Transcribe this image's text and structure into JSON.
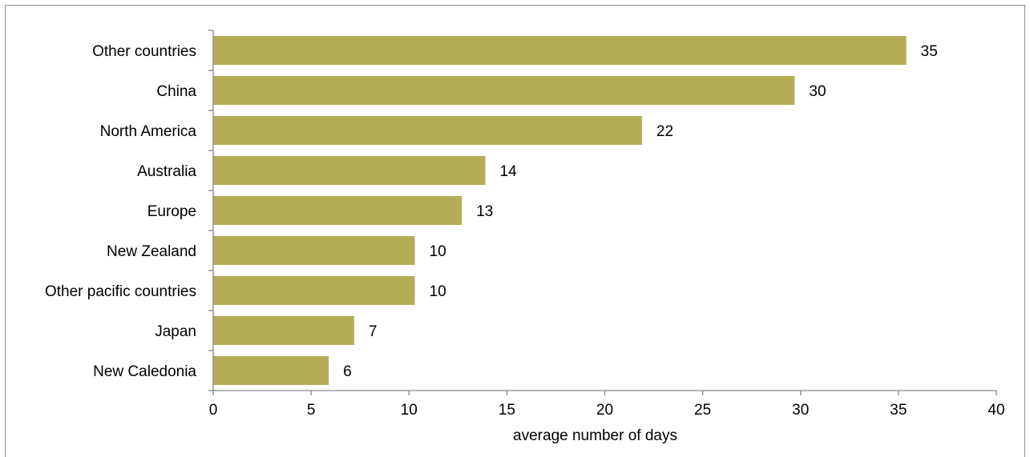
{
  "chart_data": {
    "type": "bar",
    "orientation": "horizontal",
    "title": "",
    "xlabel": "average number of days",
    "ylabel": "",
    "categories": [
      "Other countries",
      "China",
      "North America",
      "Australia",
      "Europe",
      "New Zealand",
      "Other pacific countries",
      "Japan",
      "New Caledonia"
    ],
    "values": [
      35.4,
      29.7,
      21.9,
      13.9,
      12.7,
      10.3,
      10.3,
      7.2,
      5.9
    ],
    "data_labels": [
      "35",
      "30",
      "22",
      "14",
      "13",
      "10",
      "10",
      "7",
      "6"
    ],
    "xlim": [
      0,
      40
    ],
    "xticks": [
      0,
      5,
      10,
      15,
      20,
      25,
      30,
      35,
      40
    ],
    "bar_color": "#b5ad55",
    "grid": false,
    "legend": "none"
  }
}
